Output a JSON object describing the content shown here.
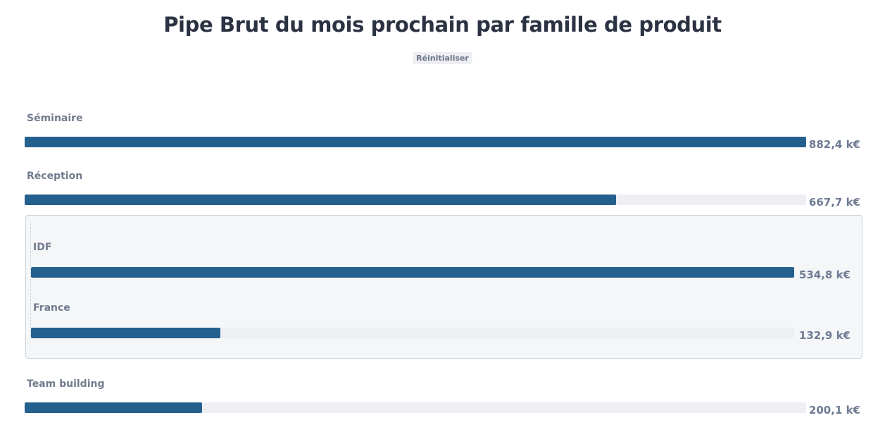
{
  "title": "Pipe Brut du mois prochain par famille de produit",
  "reset_label": "Réinitialiser",
  "colors": {
    "bar": "#24608e",
    "track": "#edeff3",
    "label": "#727b8e",
    "value": "#6e7b93"
  },
  "chart_data": {
    "type": "bar",
    "orientation": "horizontal",
    "title": "Pipe Brut du mois prochain par famille de produit",
    "unit": "k€",
    "grid": false,
    "groups": [
      {
        "categories": [
          "Séminaire",
          "Réception",
          "Team building"
        ],
        "values": [
          882.4,
          667.7,
          200.1
        ],
        "labels": [
          "882,4 k€",
          "667,7 k€",
          "200,1 k€"
        ]
      },
      {
        "parent": "Réception",
        "expanded": true,
        "categories": [
          "IDF",
          "France"
        ],
        "values": [
          534.8,
          132.9
        ],
        "labels": [
          "534,8 k€",
          "132,9 k€"
        ]
      }
    ]
  }
}
